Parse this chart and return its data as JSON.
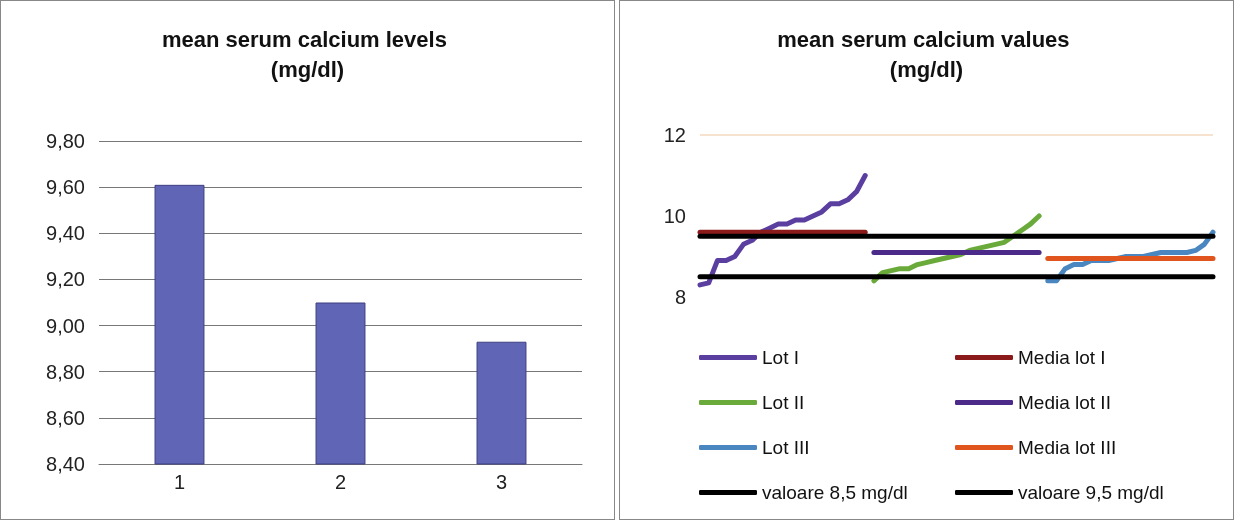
{
  "chart_data": [
    {
      "type": "bar",
      "title": "mean serum calcium levels (mg/dl)",
      "categories": [
        "1",
        "2",
        "3"
      ],
      "values": [
        9.61,
        9.1,
        8.93
      ],
      "color": "#6065b5",
      "ylim": [
        8.4,
        9.8
      ],
      "yticks": [
        {
          "value": 8.4,
          "label": "8,40"
        },
        {
          "value": 8.6,
          "label": "8,60"
        },
        {
          "value": 8.8,
          "label": "8,80"
        },
        {
          "value": 9.0,
          "label": "9,00"
        },
        {
          "value": 9.2,
          "label": "9,20"
        },
        {
          "value": 9.4,
          "label": "9,40"
        },
        {
          "value": 9.6,
          "label": "9,60"
        },
        {
          "value": 9.8,
          "label": "9,80"
        }
      ],
      "grid": "y",
      "legend": false
    },
    {
      "type": "line",
      "title": "mean serum calcium values (mg/dl)",
      "categories": [
        null,
        null,
        null,
        null,
        null,
        null,
        null,
        null,
        null,
        null,
        null,
        null,
        null,
        null,
        null,
        null,
        null,
        null,
        null,
        null,
        null,
        null,
        null,
        null,
        null,
        null,
        null,
        null,
        null,
        null,
        null,
        null,
        null,
        null,
        null,
        null,
        null,
        null,
        null,
        null,
        null,
        null,
        null,
        null,
        null,
        null,
        null,
        null,
        null,
        null,
        null,
        null,
        null,
        null,
        null,
        null,
        null,
        null,
        null,
        null
      ],
      "series": [
        {
          "name": "Lot I",
          "color": "#5b3fa0",
          "values": [
            8.3,
            8.35,
            8.9,
            8.9,
            9.0,
            9.3,
            9.4,
            9.6,
            9.7,
            9.8,
            9.8,
            9.9,
            9.9,
            10.0,
            10.1,
            10.3,
            10.3,
            10.4,
            10.6,
            11.0,
            null,
            null,
            null,
            null,
            null,
            null,
            null,
            null,
            null,
            null,
            null,
            null,
            null,
            null,
            null,
            null,
            null,
            null,
            null,
            null,
            null,
            null,
            null,
            null,
            null,
            null,
            null,
            null,
            null,
            null,
            null,
            null,
            null,
            null,
            null,
            null,
            null,
            null,
            null,
            null
          ]
        },
        {
          "name": "Media lot I",
          "color": "#8b1a1a",
          "values": [
            9.6,
            9.6,
            9.6,
            9.6,
            9.6,
            9.6,
            9.6,
            9.6,
            9.6,
            9.6,
            9.6,
            9.6,
            9.6,
            9.6,
            9.6,
            9.6,
            9.6,
            9.6,
            9.6,
            9.6,
            null,
            null,
            null,
            null,
            null,
            null,
            null,
            null,
            null,
            null,
            null,
            null,
            null,
            null,
            null,
            null,
            null,
            null,
            null,
            null,
            null,
            null,
            null,
            null,
            null,
            null,
            null,
            null,
            null,
            null,
            null,
            null,
            null,
            null,
            null,
            null,
            null,
            null,
            null,
            null
          ]
        },
        {
          "name": "Lot II",
          "color": "#6aaa3a",
          "values": [
            null,
            null,
            null,
            null,
            null,
            null,
            null,
            null,
            null,
            null,
            null,
            null,
            null,
            null,
            null,
            null,
            null,
            null,
            null,
            null,
            8.4,
            8.6,
            8.65,
            8.7,
            8.7,
            8.8,
            8.85,
            8.9,
            8.95,
            9.0,
            9.05,
            9.15,
            9.2,
            9.25,
            9.3,
            9.35,
            9.5,
            9.65,
            9.8,
            10.0,
            null,
            null,
            null,
            null,
            null,
            null,
            null,
            null,
            null,
            null,
            null,
            null,
            null,
            null,
            null,
            null,
            null,
            null,
            null,
            null
          ]
        },
        {
          "name": "Media lot II",
          "color": "#4b2a8a",
          "values": [
            null,
            null,
            null,
            null,
            null,
            null,
            null,
            null,
            null,
            null,
            null,
            null,
            null,
            null,
            null,
            null,
            null,
            null,
            null,
            null,
            9.1,
            9.1,
            9.1,
            9.1,
            9.1,
            9.1,
            9.1,
            9.1,
            9.1,
            9.1,
            9.1,
            9.1,
            9.1,
            9.1,
            9.1,
            9.1,
            9.1,
            9.1,
            9.1,
            9.1,
            null,
            null,
            null,
            null,
            null,
            null,
            null,
            null,
            null,
            null,
            null,
            null,
            null,
            null,
            null,
            null,
            null,
            null,
            null,
            null
          ]
        },
        {
          "name": "Lot III",
          "color": "#4a86c0",
          "values": [
            null,
            null,
            null,
            null,
            null,
            null,
            null,
            null,
            null,
            null,
            null,
            null,
            null,
            null,
            null,
            null,
            null,
            null,
            null,
            null,
            null,
            null,
            null,
            null,
            null,
            null,
            null,
            null,
            null,
            null,
            null,
            null,
            null,
            null,
            null,
            null,
            null,
            null,
            null,
            null,
            8.4,
            8.4,
            8.7,
            8.8,
            8.8,
            8.9,
            8.9,
            8.9,
            8.95,
            9.0,
            9.0,
            9.0,
            9.05,
            9.1,
            9.1,
            9.1,
            9.1,
            9.15,
            9.3,
            9.6
          ]
        },
        {
          "name": "Media lot III",
          "color": "#e0541e",
          "values": [
            null,
            null,
            null,
            null,
            null,
            null,
            null,
            null,
            null,
            null,
            null,
            null,
            null,
            null,
            null,
            null,
            null,
            null,
            null,
            null,
            null,
            null,
            null,
            null,
            null,
            null,
            null,
            null,
            null,
            null,
            null,
            null,
            null,
            null,
            null,
            null,
            null,
            null,
            null,
            null,
            8.95,
            8.95,
            8.95,
            8.95,
            8.95,
            8.95,
            8.95,
            8.95,
            8.95,
            8.95,
            8.95,
            8.95,
            8.95,
            8.95,
            8.95,
            8.95,
            8.95,
            8.95,
            8.95,
            8.95
          ]
        },
        {
          "name": "valoare 8,5 mg/dl",
          "color": "#000000",
          "values": [
            8.5,
            8.5,
            8.5,
            8.5,
            8.5,
            8.5,
            8.5,
            8.5,
            8.5,
            8.5,
            8.5,
            8.5,
            8.5,
            8.5,
            8.5,
            8.5,
            8.5,
            8.5,
            8.5,
            8.5,
            8.5,
            8.5,
            8.5,
            8.5,
            8.5,
            8.5,
            8.5,
            8.5,
            8.5,
            8.5,
            8.5,
            8.5,
            8.5,
            8.5,
            8.5,
            8.5,
            8.5,
            8.5,
            8.5,
            8.5,
            8.5,
            8.5,
            8.5,
            8.5,
            8.5,
            8.5,
            8.5,
            8.5,
            8.5,
            8.5,
            8.5,
            8.5,
            8.5,
            8.5,
            8.5,
            8.5,
            8.5,
            8.5,
            8.5,
            8.5
          ]
        },
        {
          "name": "valoare 9,5 mg/dl",
          "color": "#000000",
          "values": [
            9.5,
            9.5,
            9.5,
            9.5,
            9.5,
            9.5,
            9.5,
            9.5,
            9.5,
            9.5,
            9.5,
            9.5,
            9.5,
            9.5,
            9.5,
            9.5,
            9.5,
            9.5,
            9.5,
            9.5,
            9.5,
            9.5,
            9.5,
            9.5,
            9.5,
            9.5,
            9.5,
            9.5,
            9.5,
            9.5,
            9.5,
            9.5,
            9.5,
            9.5,
            9.5,
            9.5,
            9.5,
            9.5,
            9.5,
            9.5,
            9.5,
            9.5,
            9.5,
            9.5,
            9.5,
            9.5,
            9.5,
            9.5,
            9.5,
            9.5,
            9.5,
            9.5,
            9.5,
            9.5,
            9.5,
            9.5,
            9.5,
            9.5,
            9.5,
            9.5
          ]
        }
      ],
      "ylim": [
        8,
        12
      ],
      "yticks": [
        8,
        10,
        12
      ],
      "ref_lines": [
        {
          "axis": "y",
          "value": 12,
          "color": "#f5d7bf"
        }
      ],
      "marker": "none",
      "line_style": "solid",
      "legend": "bottom"
    }
  ]
}
